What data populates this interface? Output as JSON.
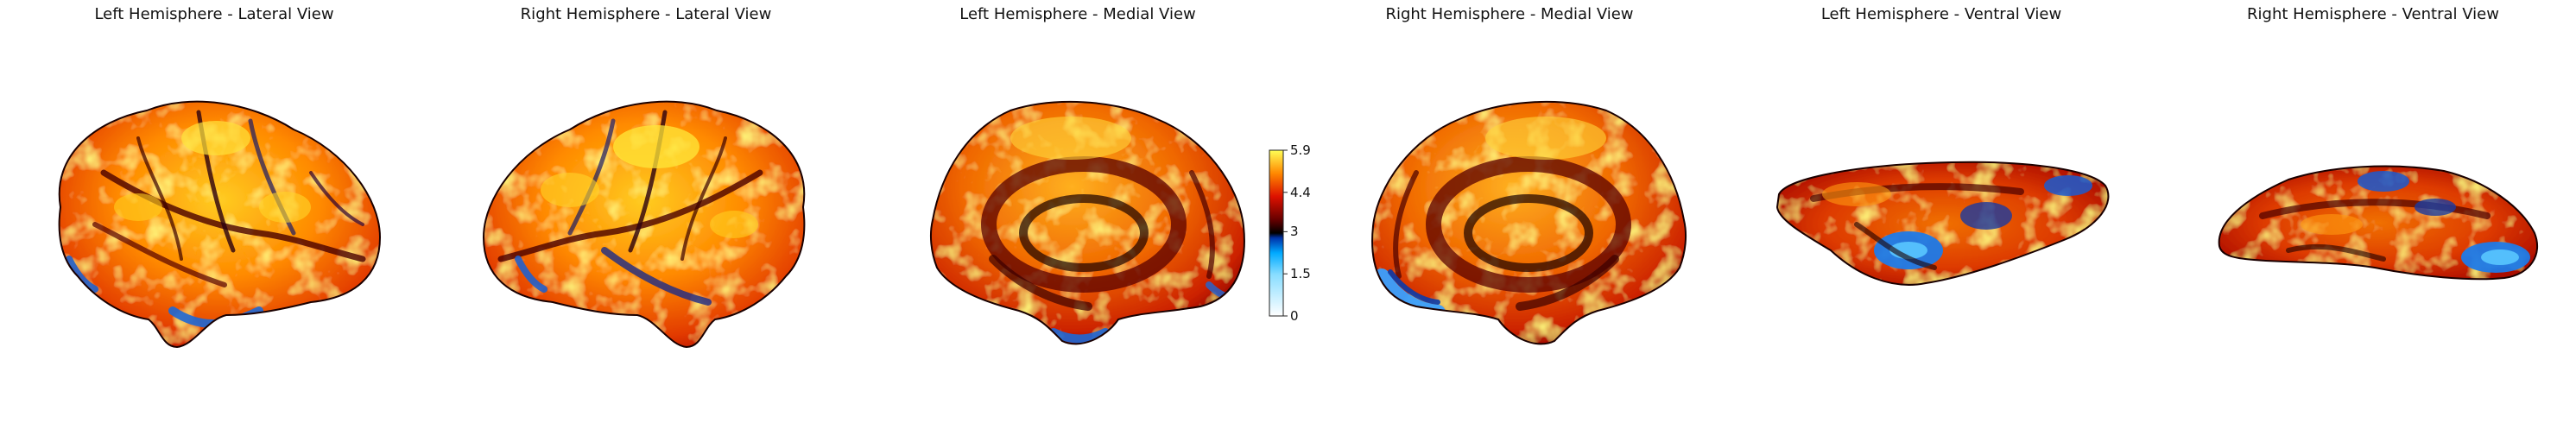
{
  "panels": [
    {
      "title": "Left Hemisphere - Lateral View",
      "view": "lateral",
      "hemisphere": "left"
    },
    {
      "title": "Right Hemisphere - Lateral View",
      "view": "lateral",
      "hemisphere": "right"
    },
    {
      "title": "Left Hemisphere - Medial View",
      "view": "medial",
      "hemisphere": "left"
    },
    {
      "title": "Right Hemisphere - Medial View",
      "view": "medial",
      "hemisphere": "right"
    },
    {
      "title": "Left Hemisphere - Ventral View",
      "view": "ventral",
      "hemisphere": "left"
    },
    {
      "title": "Right Hemisphere - Ventral View",
      "view": "ventral",
      "hemisphere": "right"
    }
  ],
  "colorbar": {
    "min": 0,
    "max": 5.9,
    "ticks": [
      "0",
      "1.5",
      "3",
      "4.4",
      "5.9"
    ],
    "tick_values": [
      0,
      1.5,
      3,
      4.4,
      5.9
    ],
    "colormap": "cold_hot",
    "colors": {
      "high": "#ffff66",
      "upper": "#ff8800",
      "mid_high": "#cc0000",
      "center": "#000000",
      "mid_low": "#0044cc",
      "low": "#44ccff",
      "lowest": "#ffffff"
    }
  }
}
